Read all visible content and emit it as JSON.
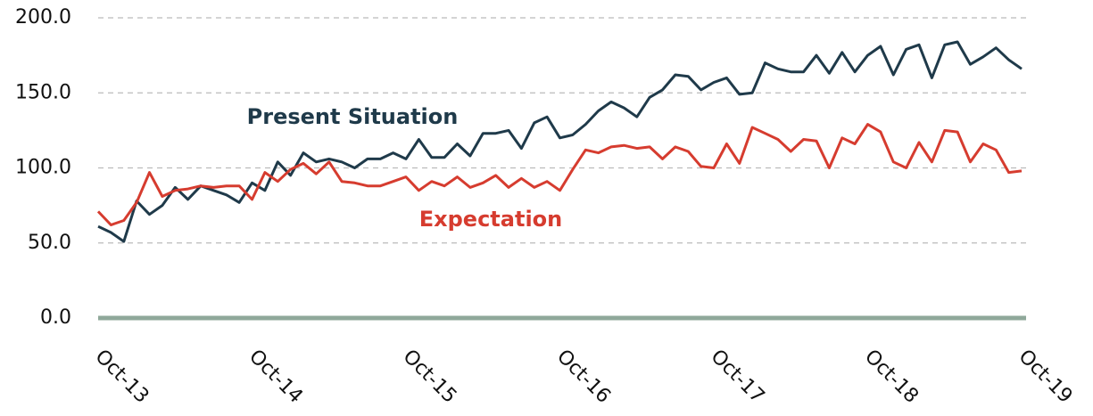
{
  "chart_data": {
    "type": "line",
    "categories": [
      "Oct-13",
      null,
      null,
      null,
      null,
      null,
      null,
      null,
      null,
      null,
      null,
      null,
      "Oct-14",
      null,
      null,
      null,
      null,
      null,
      null,
      null,
      null,
      null,
      null,
      null,
      "Oct-15",
      null,
      null,
      null,
      null,
      null,
      null,
      null,
      null,
      null,
      null,
      null,
      "Oct-16",
      null,
      null,
      null,
      null,
      null,
      null,
      null,
      null,
      null,
      null,
      null,
      "Oct-17",
      null,
      null,
      null,
      null,
      null,
      null,
      null,
      null,
      null,
      null,
      null,
      "Oct-18",
      null,
      null,
      null,
      null,
      null,
      null,
      null,
      null,
      null,
      null,
      null,
      "Oct-19"
    ],
    "series": [
      {
        "name": "Present Situation",
        "color": "#1f3a4a",
        "values": [
          61,
          57,
          51,
          78,
          69,
          75,
          87,
          79,
          88,
          85,
          82,
          77,
          90,
          85,
          104,
          95,
          110,
          104,
          106,
          104,
          100,
          106,
          106,
          110,
          106,
          119,
          107,
          107,
          116,
          108,
          123,
          123,
          125,
          113,
          130,
          134,
          120,
          122,
          129,
          138,
          144,
          140,
          134,
          147,
          152,
          162,
          161,
          152,
          157,
          160,
          149,
          150,
          170,
          166,
          164,
          164,
          175,
          163,
          177,
          164,
          175,
          181,
          162,
          179,
          182,
          160,
          182,
          184,
          169,
          174,
          180,
          172,
          166
        ]
      },
      {
        "name": "Expectation",
        "color": "#d63c2f",
        "values": [
          71,
          62,
          65,
          77,
          97,
          81,
          85,
          86,
          88,
          87,
          88,
          88,
          79,
          97,
          91,
          99,
          103,
          96,
          104,
          91,
          90,
          88,
          88,
          91,
          94,
          85,
          91,
          88,
          94,
          87,
          90,
          95,
          87,
          93,
          87,
          91,
          85,
          99,
          112,
          110,
          114,
          115,
          113,
          114,
          106,
          114,
          111,
          101,
          100,
          116,
          103,
          127,
          123,
          119,
          111,
          119,
          118,
          100,
          120,
          116,
          129,
          124,
          104,
          100,
          117,
          104,
          125,
          124,
          104,
          116,
          112,
          97,
          98
        ]
      }
    ],
    "ylim": [
      0,
      200
    ],
    "yticks": [
      {
        "value": 0,
        "label": "0.0"
      },
      {
        "value": 50,
        "label": "50.0"
      },
      {
        "value": 100,
        "label": "100.0"
      },
      {
        "value": 150,
        "label": "150.0"
      },
      {
        "value": 200,
        "label": "200.0"
      }
    ],
    "grid": true
  }
}
